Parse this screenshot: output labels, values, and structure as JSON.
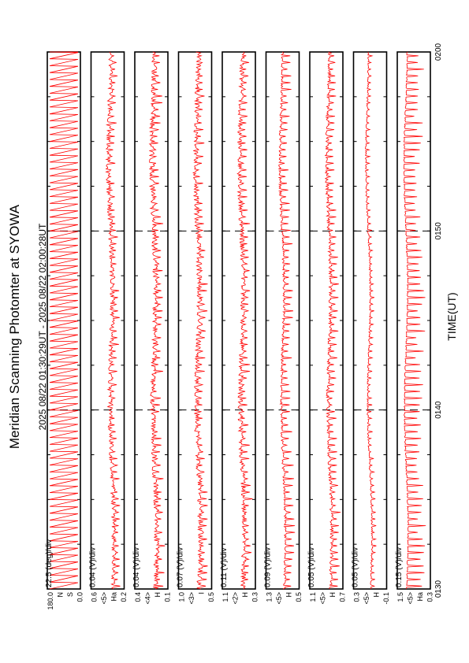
{
  "chart_data": {
    "type": "line",
    "title": "Meridian Scanning Photomter at SYOWA",
    "subtitle": "2025 08/22 01:30:29UT - 2025 08/22 02:00:28UT",
    "xlabel": "TIME(UT)",
    "xlim": [
      "0130",
      "0200"
    ],
    "x_ticks": [
      "0130",
      "0140",
      "0150",
      "0200"
    ],
    "grid": "vertical dashed at 10-minute ticks",
    "series_color": "#ff0000",
    "panels": [
      {
        "scale": "22.5 (deg)/div",
        "ylabels": [
          "180.0",
          "N",
          "S",
          "0.0"
        ],
        "kind": "scan"
      },
      {
        "scale": "0.04 (V)/div",
        "ylabels": [
          "0.6",
          "<5>",
          "Ha",
          "0.2"
        ],
        "level": 0.55,
        "drift": 0.18,
        "noise": 0.14,
        "spike": 0.18
      },
      {
        "scale": "0.04 (V)/div",
        "ylabels": [
          "0.4",
          "<4>",
          "H",
          "0.1"
        ],
        "level": 0.55,
        "drift": 0.12,
        "noise": 0.16,
        "spike": 0.22
      },
      {
        "scale": "0.07 (V)/div",
        "ylabels": [
          "1.0",
          "<3>",
          "I",
          "0.5"
        ],
        "level": 0.55,
        "drift": 0.12,
        "noise": 0.15,
        "spike": 0.2
      },
      {
        "scale": "0.11 (V)/div",
        "ylabels": [
          "1.1",
          "<2>",
          "H",
          "0.3"
        ],
        "level": 0.55,
        "drift": 0.12,
        "noise": 0.14,
        "spike": 0.22
      },
      {
        "scale": "0.09 (V)/div",
        "ylabels": [
          "1.3",
          "<5>",
          "H",
          "0.5"
        ],
        "level": 0.45,
        "drift": 0.16,
        "noise": 0.07,
        "spike": 0.3
      },
      {
        "scale": "0.05 (V)/div",
        "ylabels": [
          "1.1",
          "<5>",
          "H",
          "0.7"
        ],
        "level": 0.55,
        "drift": 0.12,
        "noise": 0.1,
        "spike": 0.25
      },
      {
        "scale": "0.05 (V)/div",
        "ylabels": [
          "0.3",
          "<5>",
          "H",
          "-0.1"
        ],
        "level": 0.4,
        "drift": 0.2,
        "noise": 0.04,
        "spike": 0.12
      },
      {
        "scale": "0.15 (V)/div",
        "ylabels": [
          "1.5",
          "<5>",
          "Ha",
          "0.3"
        ],
        "level": 0.25,
        "drift": 0.05,
        "noise": 0.03,
        "spike": 0.55
      }
    ]
  }
}
